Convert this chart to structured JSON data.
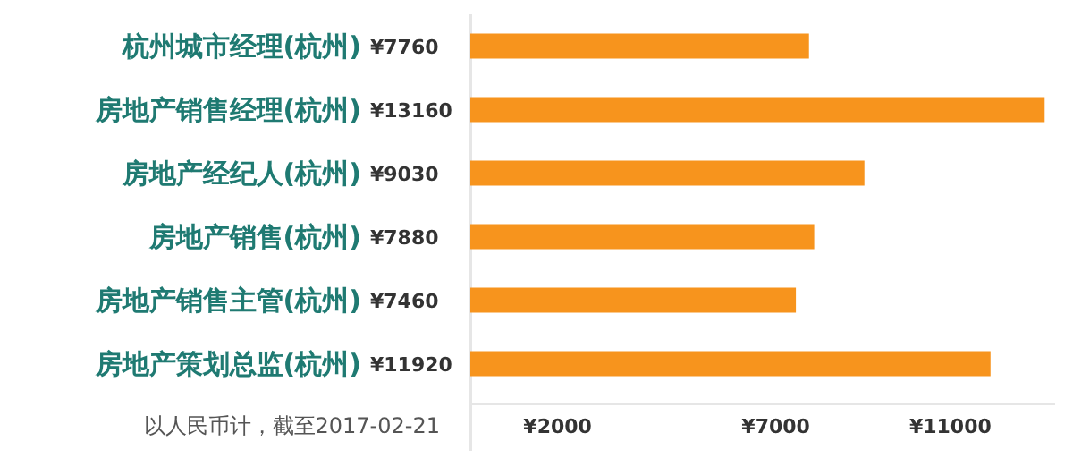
{
  "chart_data": {
    "type": "bar",
    "orientation": "horizontal",
    "categories": [
      "杭州城市经理(杭州)",
      "房地产销售经理(杭州)",
      "房地产经纪人(杭州)",
      "房地产销售(杭州)",
      "房地产销售主管(杭州)",
      "房地产策划总监(杭州)"
    ],
    "values": [
      7760,
      13160,
      9030,
      7880,
      7460,
      11920
    ],
    "value_labels": [
      "¥7760",
      "¥13160",
      "¥9030",
      "¥7880",
      "¥7460",
      "¥11920"
    ],
    "color": "#f7941d",
    "xlim": [
      0,
      13400
    ],
    "xticks": [
      {
        "value": 2000,
        "label": "¥2000"
      },
      {
        "value": 7000,
        "label": "¥7000"
      },
      {
        "value": 11000,
        "label": "¥11000"
      }
    ],
    "annotations": [
      "以人民币计，截至2017-02-21"
    ]
  }
}
